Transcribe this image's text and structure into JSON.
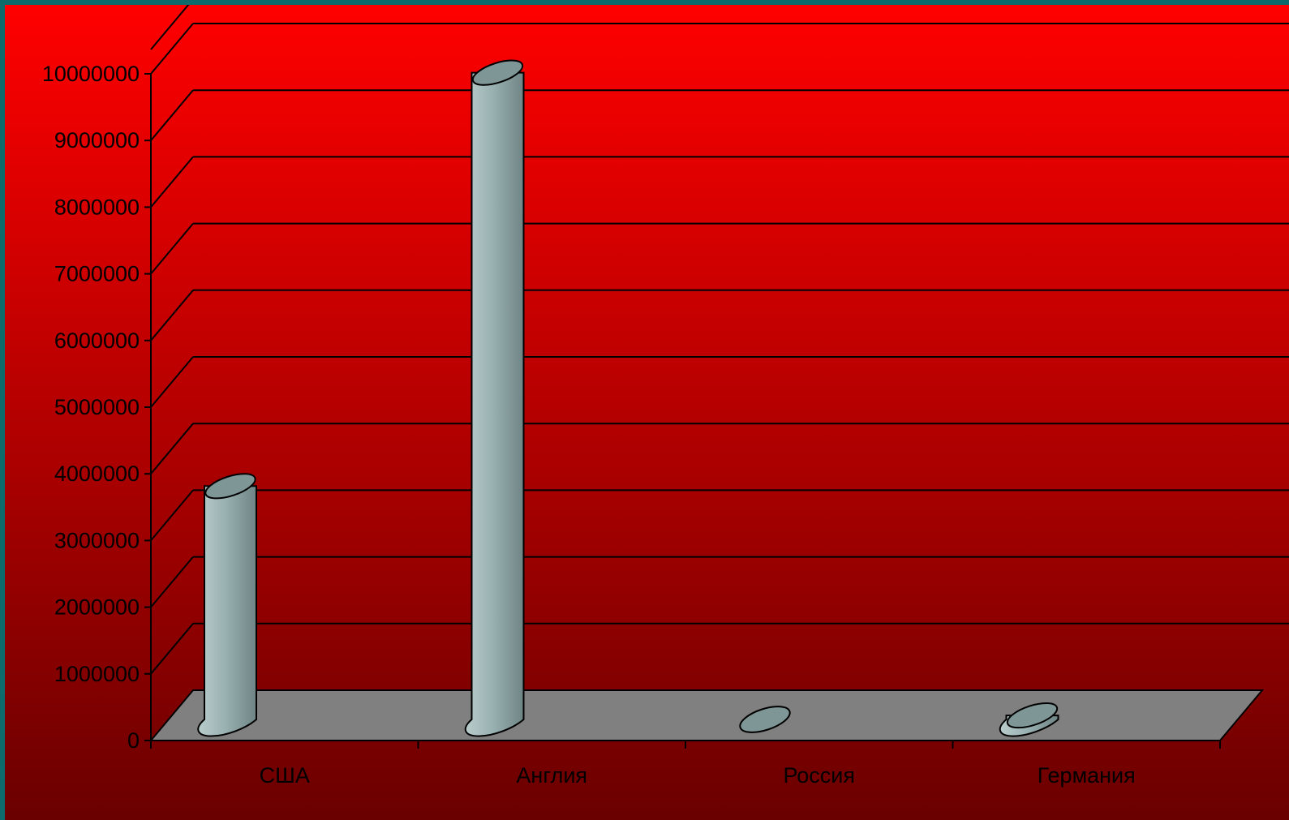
{
  "chart_data": {
    "type": "bar",
    "style": "3d-cylinder",
    "categories": [
      "США",
      "Англия",
      "Россия",
      "Германия"
    ],
    "values": [
      3500000,
      9700000,
      30000,
      60000
    ],
    "title": "",
    "xlabel": "",
    "ylabel": "",
    "ylim": [
      0,
      10000000
    ],
    "yticks": [
      "0",
      "1000000",
      "2000000",
      "3000000",
      "4000000",
      "5000000",
      "6000000",
      "7000000",
      "8000000",
      "9000000",
      "10000000"
    ],
    "grid": true,
    "legend": "none",
    "colors": {
      "background_top": "#ff0000",
      "background_bottom": "#6a0000",
      "floor": "#808080",
      "bar": "#8fa6a6",
      "gridline": "#000000",
      "frame": "#0e6b6b"
    }
  }
}
